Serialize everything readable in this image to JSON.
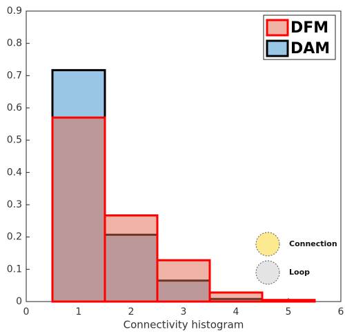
{
  "chart_data": {
    "type": "histogram",
    "xlabel": "Connectivity histogram",
    "bins": [
      0.5,
      1.5,
      2.5,
      3.5,
      4.5,
      5.5
    ],
    "series": [
      {
        "name": "DAM",
        "color": "#8fc0e3",
        "edge_color": "#000000",
        "values": [
          0.717,
          0.207,
          0.065,
          0.008,
          0.002
        ]
      },
      {
        "name": "DFM",
        "color": "#e06a4c",
        "edge_color": "#ff0000",
        "values": [
          0.57,
          0.267,
          0.128,
          0.028,
          0.005
        ]
      }
    ],
    "xlim": [
      0,
      6
    ],
    "xticks": [
      0,
      1,
      2,
      3,
      4,
      5,
      6
    ],
    "ylim": [
      0,
      0.9
    ],
    "yticks": [
      0,
      0.1,
      0.2,
      0.3,
      0.4,
      0.5,
      0.6,
      0.7,
      0.8,
      0.9
    ],
    "legend": "upper right",
    "annotations": [
      "Connection",
      "Loop"
    ]
  }
}
